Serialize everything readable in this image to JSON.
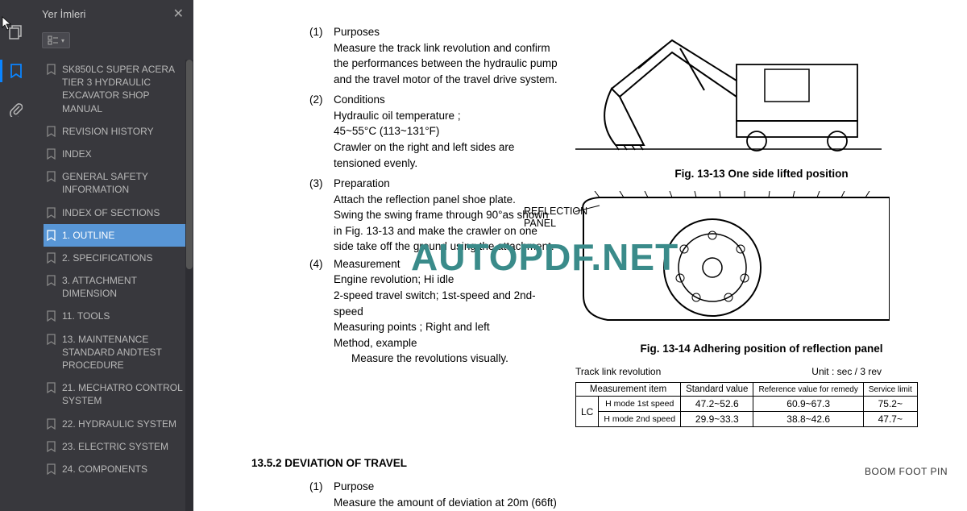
{
  "sidebar": {
    "title": "Yer İmleri",
    "items": [
      "SK850LC SUPER ACERA TIER 3 HYDRAULIC EXCAVATOR SHOP MANUAL",
      "REVISION HISTORY",
      "INDEX",
      "GENERAL SAFETY INFORMATION",
      "INDEX OF SECTIONS",
      "1. OUTLINE",
      "2. SPECIFICATIONS",
      "3. ATTACHMENT DIMENSION",
      "11. TOOLS",
      "13. MAINTENANCE STANDARD ANDTEST PROCEDURE",
      "21. MECHATRO CONTROL SYSTEM",
      "22. HYDRAULIC SYSTEM",
      "23. ELECTRIC SYSTEM",
      "24. COMPONENTS"
    ],
    "selected_index": 5
  },
  "watermark": "AUTOPDF.NET",
  "doc": {
    "p1_num": "(1)",
    "p1_title": "Purposes",
    "p1_body": "Measure the track link revolution and confirm the performances between the hydraulic pump and the travel motor of the travel drive system.",
    "p2_num": "(2)",
    "p2_title": "Conditions",
    "p2_l1": "Hydraulic oil temperature ;",
    "p2_l2": "45~55°C (113~131°F)",
    "p2_l3": "Crawler on the right and left sides are tensioned evenly.",
    "p3_num": "(3)",
    "p3_title": "Preparation",
    "p3_l1": "Attach the reflection panel shoe plate.",
    "p3_l2": "Swing the swing frame through 90°as shown in Fig. 13-13 and make the crawler on one side take off the ground using the attachment.",
    "p4_num": "(4)",
    "p4_title": "Measurement",
    "p4_l1": "Engine revolution; Hi idle",
    "p4_l2": "2-speed travel switch; 1st-speed and 2nd-speed",
    "p4_l3": "Measuring points ; Right and left",
    "p4_l4": "Method, example",
    "p4_l5": "Measure the revolutions visually.",
    "fig13": "Fig. 13-13 One side lifted position",
    "refl_label": "REFLECTION\nPANEL",
    "fig14": "Fig. 13-14 Adhering position of reflection panel",
    "table_title": "Track link revolution",
    "table_unit": "Unit : sec / 3 rev",
    "sec_head": "13.5.2    DEVIATION OF TRAVEL",
    "p5_num": "(1)",
    "p5_title": "Purpose",
    "p5_body": "Measure the amount of deviation at 20m (66ft)",
    "foot_pin": "BOOM FOOT PIN"
  },
  "table": {
    "cols": [
      "Measurement item",
      "Standard value",
      "Reference value for remedy",
      "Service limit"
    ],
    "lc": "LC",
    "rows": [
      [
        "H mode 1st speed",
        "47.2~52.6",
        "60.9~67.3",
        "75.2~"
      ],
      [
        "H mode 2nd speed",
        "29.9~33.3",
        "38.8~42.6",
        "47.7~"
      ]
    ]
  },
  "colors": {
    "sidebar_bg": "#38383d",
    "selected_bg": "#5896d6",
    "watermark": "#3a8b8a"
  }
}
